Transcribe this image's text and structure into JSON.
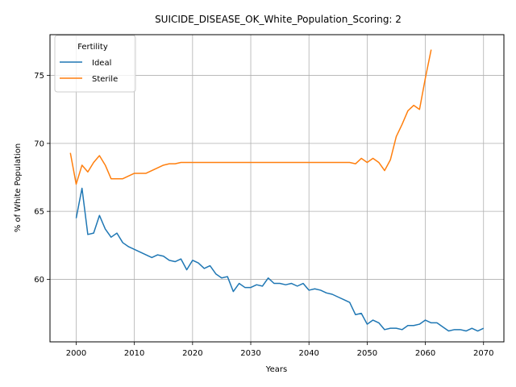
{
  "chart_data": {
    "type": "line",
    "title": "SUICIDE_DISEASE_OK_White_Population_Scoring: 2",
    "xlabel": "Years",
    "ylabel": "% of White Population",
    "xlim": [
      1995.5,
      2073.5
    ],
    "ylim": [
      55.4,
      78.0
    ],
    "xticks": [
      2000,
      2010,
      2020,
      2030,
      2040,
      2050,
      2060,
      2070
    ],
    "yticks": [
      60,
      65,
      70,
      75
    ],
    "grid": true,
    "legend": {
      "title": "Fertility",
      "placement": "top-left"
    },
    "series": [
      {
        "name": "Ideal",
        "color": "#1f77b4",
        "x": [
          2000,
          2001,
          2002,
          2003,
          2004,
          2005,
          2006,
          2007,
          2008,
          2009,
          2010,
          2011,
          2012,
          2013,
          2014,
          2015,
          2016,
          2017,
          2018,
          2019,
          2020,
          2021,
          2022,
          2023,
          2024,
          2025,
          2026,
          2027,
          2028,
          2029,
          2030,
          2031,
          2032,
          2033,
          2034,
          2035,
          2036,
          2037,
          2038,
          2039,
          2040,
          2041,
          2042,
          2043,
          2044,
          2045,
          2046,
          2047,
          2048,
          2049,
          2050,
          2051,
          2052,
          2053,
          2054,
          2055,
          2056,
          2057,
          2058,
          2059,
          2060,
          2061,
          2062,
          2063,
          2064,
          2065,
          2066,
          2067,
          2068,
          2069,
          2070
        ],
        "values": [
          64.5,
          66.7,
          63.3,
          63.4,
          64.7,
          63.7,
          63.1,
          63.4,
          62.7,
          62.4,
          62.2,
          62.0,
          61.8,
          61.6,
          61.8,
          61.7,
          61.4,
          61.3,
          61.5,
          60.7,
          61.4,
          61.2,
          60.8,
          61.0,
          60.4,
          60.1,
          60.2,
          59.1,
          59.7,
          59.4,
          59.4,
          59.6,
          59.5,
          60.1,
          59.7,
          59.7,
          59.6,
          59.7,
          59.5,
          59.7,
          59.2,
          59.3,
          59.2,
          59.0,
          58.9,
          58.7,
          58.5,
          58.3,
          57.4,
          57.5,
          56.7,
          57.0,
          56.8,
          56.3,
          56.4,
          56.4,
          56.3,
          56.6,
          56.6,
          56.7,
          57.0,
          56.8,
          56.8,
          56.5,
          56.2,
          56.3,
          56.3,
          56.2,
          56.4,
          56.2,
          56.4
        ]
      },
      {
        "name": "Sterile",
        "color": "#ff7f0e",
        "x": [
          1999,
          2000,
          2001,
          2002,
          2003,
          2004,
          2005,
          2006,
          2007,
          2008,
          2009,
          2010,
          2011,
          2012,
          2013,
          2014,
          2015,
          2016,
          2017,
          2018,
          2019,
          2020,
          2021,
          2022,
          2023,
          2024,
          2025,
          2026,
          2027,
          2028,
          2029,
          2030,
          2031,
          2032,
          2033,
          2034,
          2035,
          2036,
          2037,
          2038,
          2039,
          2040,
          2041,
          2042,
          2043,
          2044,
          2045,
          2046,
          2047,
          2048,
          2049,
          2050,
          2051,
          2052,
          2053,
          2054,
          2055,
          2056,
          2057,
          2058,
          2059,
          2060,
          2061
        ],
        "values": [
          69.3,
          67.0,
          68.4,
          67.9,
          68.6,
          69.1,
          68.4,
          67.4,
          67.4,
          67.4,
          67.6,
          67.8,
          67.8,
          67.8,
          68.0,
          68.2,
          68.4,
          68.5,
          68.5,
          68.6,
          68.6,
          68.6,
          68.6,
          68.6,
          68.6,
          68.6,
          68.6,
          68.6,
          68.6,
          68.6,
          68.6,
          68.6,
          68.6,
          68.6,
          68.6,
          68.6,
          68.6,
          68.6,
          68.6,
          68.6,
          68.6,
          68.6,
          68.6,
          68.6,
          68.6,
          68.6,
          68.6,
          68.6,
          68.6,
          68.5,
          68.9,
          68.6,
          68.9,
          68.6,
          68.0,
          68.8,
          70.5,
          71.4,
          72.4,
          72.8,
          72.5,
          74.8,
          76.9
        ]
      }
    ]
  }
}
